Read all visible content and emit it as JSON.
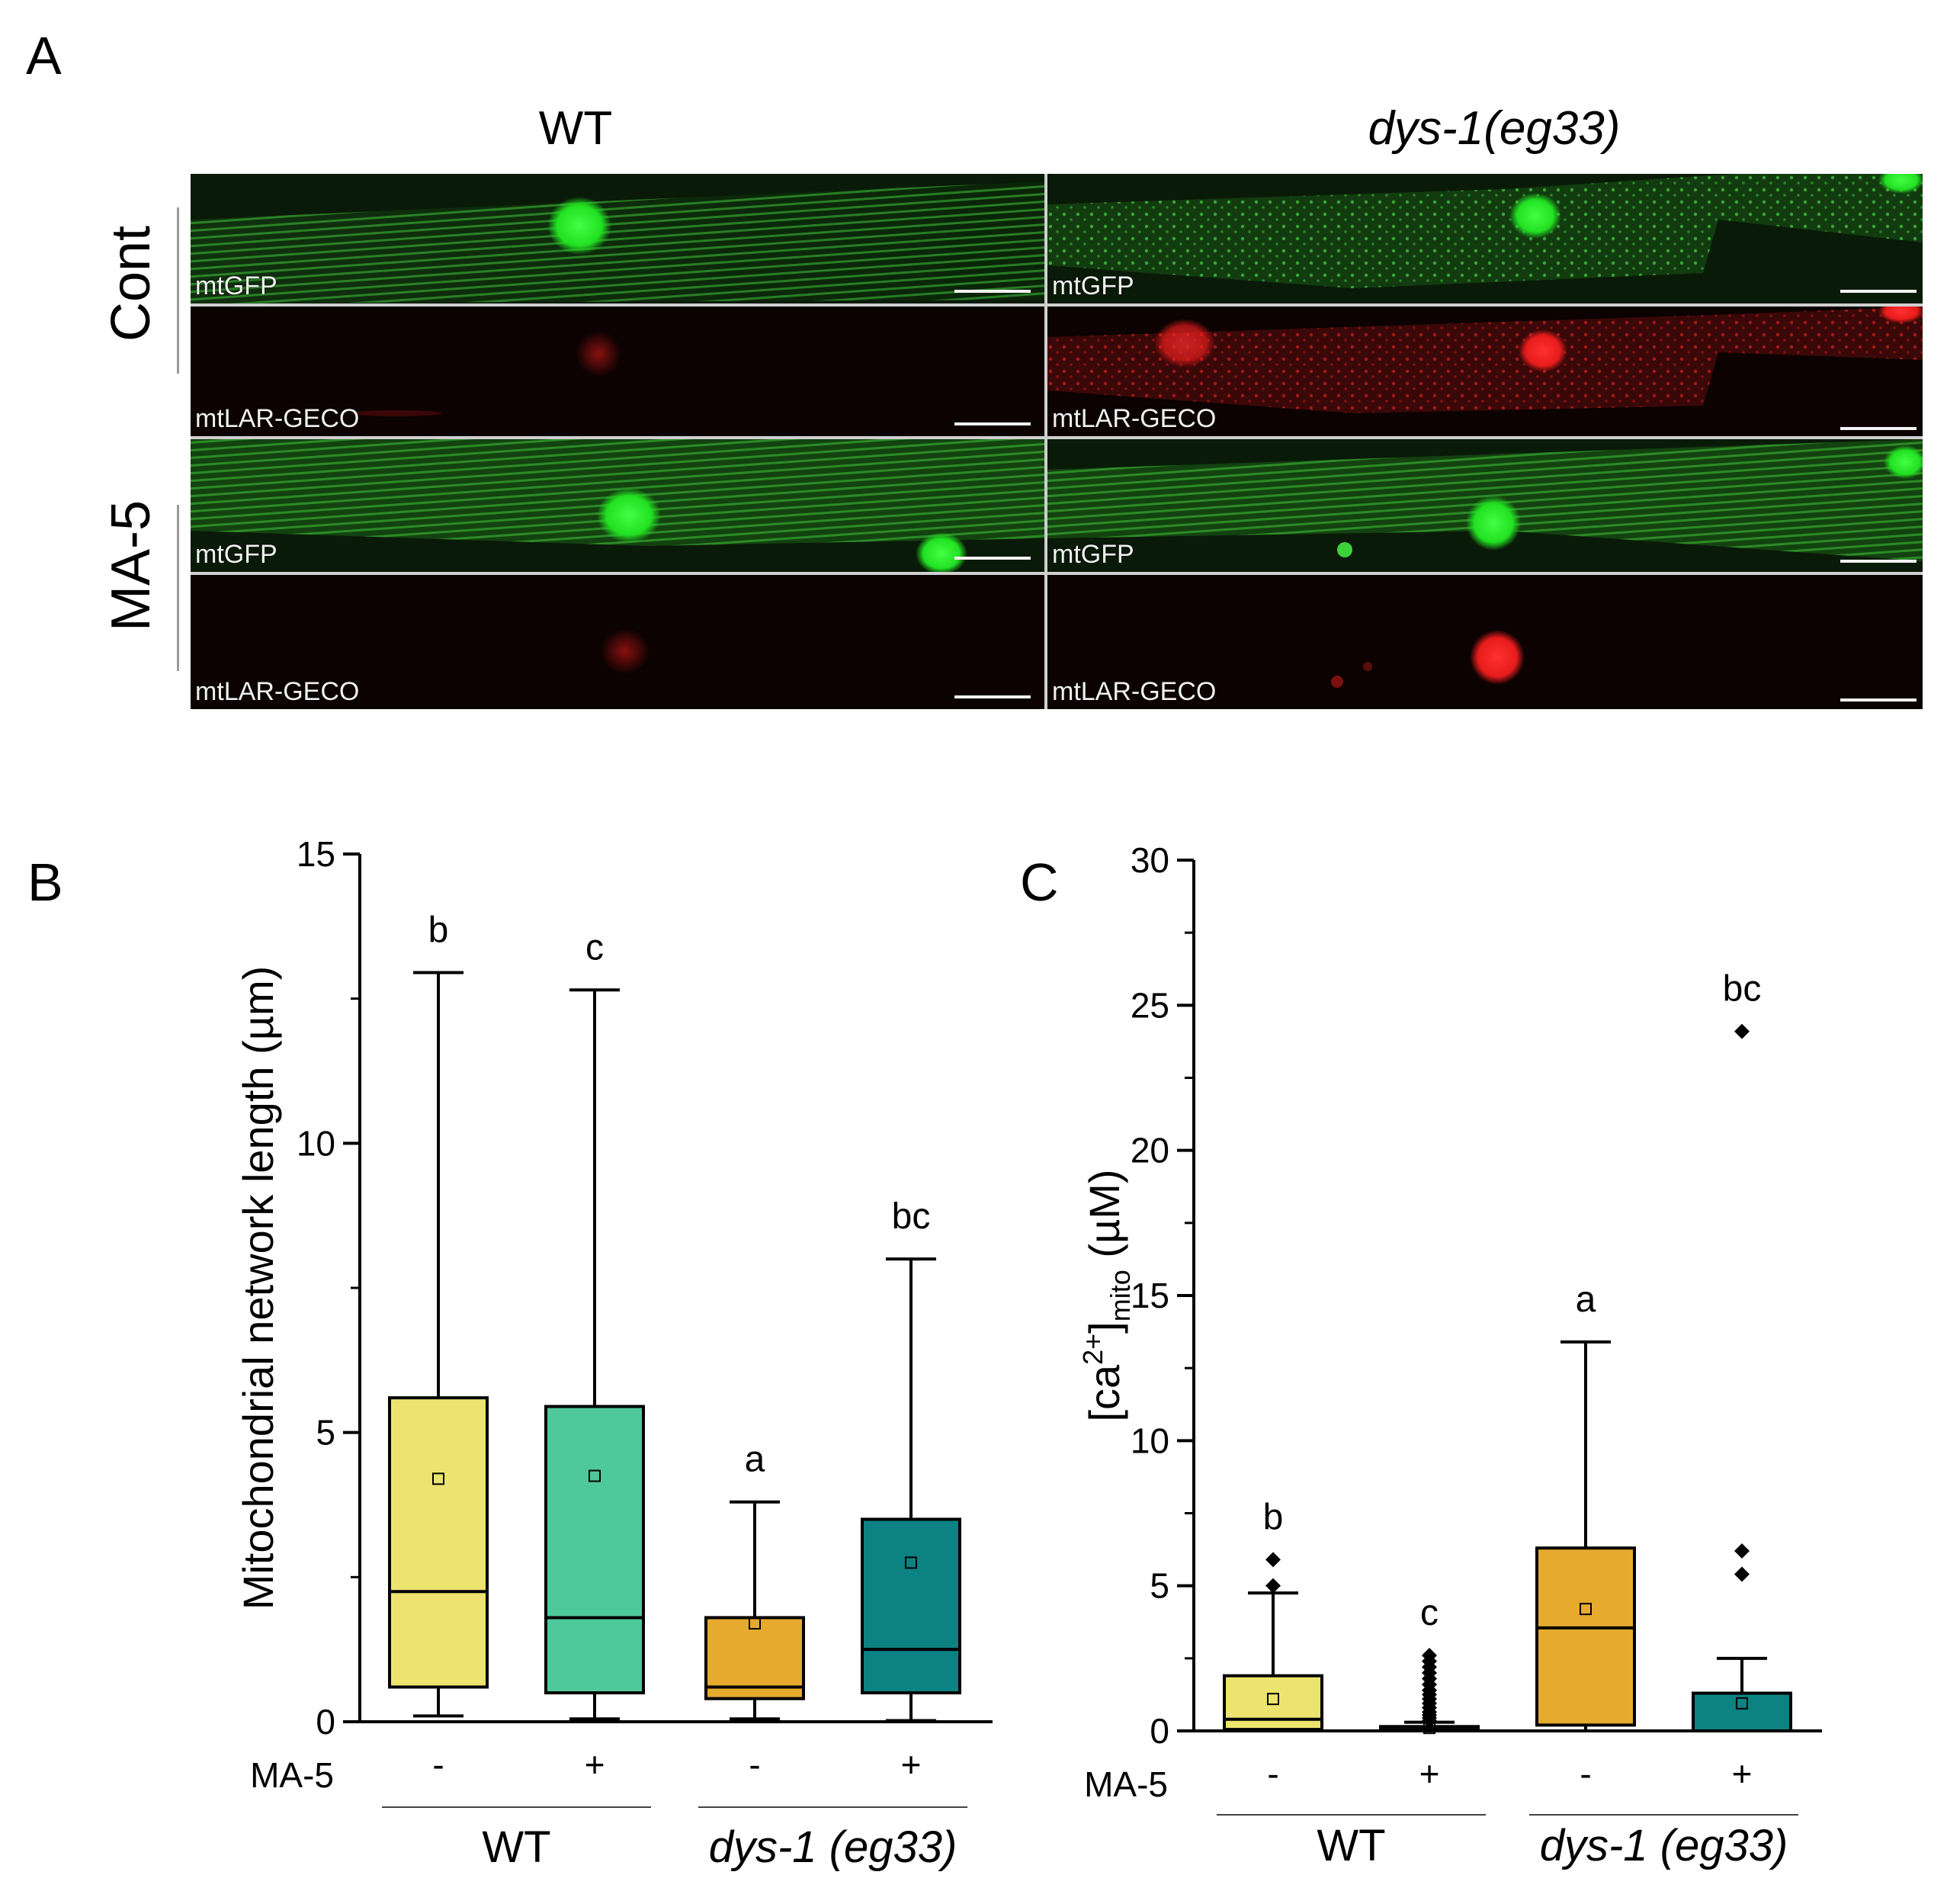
{
  "panel_letters": {
    "a": "A",
    "b": "B",
    "c": "C"
  },
  "panel_a": {
    "column_titles": {
      "wt": "WT",
      "mutant": "dys-1(eg33)"
    },
    "row_labels": {
      "cont": "Cont",
      "ma5": "MA-5"
    },
    "tiles": [
      {
        "row": "cont",
        "column": "wt",
        "channel": "mtGFP"
      },
      {
        "row": "cont",
        "column": "wt",
        "channel": "mtLAR-GECO"
      },
      {
        "row": "cont",
        "column": "mutant",
        "channel": "mtGFP"
      },
      {
        "row": "cont",
        "column": "mutant",
        "channel": "mtLAR-GECO"
      },
      {
        "row": "ma5",
        "column": "wt",
        "channel": "mtGFP"
      },
      {
        "row": "ma5",
        "column": "wt",
        "channel": "mtLAR-GECO"
      },
      {
        "row": "ma5",
        "column": "mutant",
        "channel": "mtGFP"
      },
      {
        "row": "ma5",
        "column": "mutant",
        "channel": "mtLAR-GECO"
      }
    ],
    "colors": {
      "green": "#22c81a",
      "red": "#e01818",
      "background": "#050505",
      "separator": "#cfcfcf"
    }
  },
  "chart_data": [
    {
      "type": "box",
      "panel": "B",
      "ylabel": "Mitochondrial network length (µm)",
      "ylim": [
        0,
        15
      ],
      "yticks": [
        0,
        5,
        10,
        15
      ],
      "minor_step": 2.5,
      "treatment_label": "MA-5",
      "groups": [
        {
          "label": "WT",
          "italic": false
        },
        {
          "label": "dys-1 (eg33)",
          "italic": true
        }
      ],
      "boxes": [
        {
          "treatment": "-",
          "color": "#ece46e",
          "q1": 0.6,
          "median": 2.25,
          "q3": 5.6,
          "whisker_low": 0.1,
          "whisker_high": 12.95,
          "mean": 4.2,
          "letter": "b"
        },
        {
          "treatment": "+",
          "color": "#4fc89c",
          "q1": 0.5,
          "median": 1.8,
          "q3": 5.45,
          "whisker_low": 0.05,
          "whisker_high": 12.65,
          "mean": 4.25,
          "letter": "c"
        },
        {
          "treatment": "-",
          "color": "#e5aa2e",
          "q1": 0.4,
          "median": 0.6,
          "q3": 1.8,
          "whisker_low": 0.05,
          "whisker_high": 3.8,
          "mean": 1.7,
          "letter": "a"
        },
        {
          "treatment": "+",
          "color": "#0c8282",
          "q1": 0.5,
          "median": 1.25,
          "q3": 3.5,
          "whisker_low": 0.02,
          "whisker_high": 8.0,
          "mean": 2.75,
          "letter": "bc"
        }
      ]
    },
    {
      "type": "box",
      "panel": "C",
      "ylabel": "[ca2+]mito (µM)",
      "ylim": [
        0,
        30
      ],
      "yticks": [
        0,
        5,
        10,
        15,
        20,
        25,
        30
      ],
      "minor_step": 2.5,
      "treatment_label": "MA-5",
      "groups": [
        {
          "label": "WT",
          "italic": false
        },
        {
          "label": "dys-1 (eg33)",
          "italic": true
        }
      ],
      "boxes": [
        {
          "treatment": "-",
          "color": "#ece46e",
          "q1": 0.05,
          "median": 0.4,
          "q3": 1.9,
          "whisker_low": 0.0,
          "whisker_high": 4.75,
          "mean": 1.1,
          "letter": "b",
          "outliers": [
            5.0,
            5.9
          ]
        },
        {
          "treatment": "+",
          "color": "#4fc89c",
          "q1": 0.0,
          "median": 0.05,
          "q3": 0.15,
          "whisker_low": 0.0,
          "whisker_high": 0.3,
          "mean": 0.1,
          "letter": "c",
          "outliers": [
            0.35,
            0.45,
            0.55,
            0.65,
            0.8,
            0.95,
            1.1,
            1.25,
            1.4,
            1.6,
            1.8,
            2.0,
            2.2,
            2.4,
            2.6
          ]
        },
        {
          "treatment": "-",
          "color": "#e5aa2e",
          "q1": 0.2,
          "median": 3.55,
          "q3": 6.3,
          "whisker_low": 0.0,
          "whisker_high": 13.4,
          "mean": 4.2,
          "letter": "a"
        },
        {
          "treatment": "+",
          "color": "#0c8282",
          "q1": 0.0,
          "median": 0.0,
          "q3": 1.3,
          "whisker_low": 0.0,
          "whisker_high": 2.5,
          "mean": 0.95,
          "letter": "bc",
          "outliers": [
            5.4,
            6.2,
            24.1
          ]
        }
      ]
    }
  ]
}
